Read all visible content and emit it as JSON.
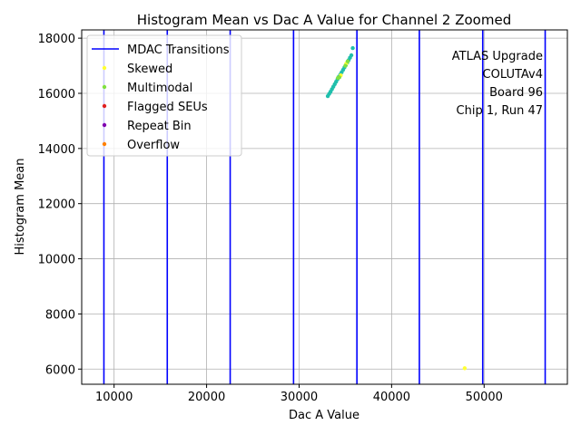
{
  "chart_data": {
    "type": "scatter",
    "title": "Histogram Mean vs Dac A Value for Channel 2 Zoomed",
    "xlabel": "Dac A Value",
    "ylabel": "Histogram Mean",
    "xlim": [
      6500,
      59000
    ],
    "ylim": [
      5450,
      18300
    ],
    "xticks": [
      10000,
      20000,
      30000,
      40000,
      50000
    ],
    "yticks": [
      6000,
      8000,
      10000,
      12000,
      14000,
      16000,
      18000
    ],
    "grid": true,
    "legend_position": "top-left",
    "annotation": [
      "ATLAS Upgrade",
      "COLUTAv4",
      "Board 96",
      "Chip 1, Run 47"
    ],
    "vlines": {
      "name": "MDAC Transitions",
      "color": "#0000ff",
      "x": [
        8900,
        15750,
        22550,
        29400,
        36250,
        43000,
        49850,
        56600
      ]
    },
    "series": [
      {
        "name": "",
        "color": "#1fbfac",
        "points": [
          [
            33100,
            15900
          ],
          [
            33250,
            15980
          ],
          [
            33400,
            16060
          ],
          [
            33550,
            16150
          ],
          [
            33700,
            16240
          ],
          [
            33850,
            16330
          ],
          [
            34000,
            16420
          ],
          [
            34150,
            16510
          ],
          [
            34300,
            16600
          ],
          [
            34450,
            16680
          ],
          [
            34600,
            16760
          ],
          [
            34750,
            16850
          ],
          [
            34900,
            16940
          ],
          [
            35050,
            17020
          ],
          [
            35200,
            17110
          ],
          [
            35350,
            17200
          ],
          [
            35500,
            17290
          ],
          [
            35650,
            17380
          ],
          [
            35800,
            17640
          ]
        ]
      },
      {
        "name": "Skewed",
        "color": "#ffff33",
        "points": [
          [
            47900,
            6030
          ],
          [
            34500,
            16650
          ],
          [
            35100,
            17080
          ]
        ]
      },
      {
        "name": "Multimodal",
        "color": "#80e040",
        "points": [
          [
            34200,
            16560
          ],
          [
            34350,
            16580
          ],
          [
            35000,
            17000
          ],
          [
            35250,
            17160
          ]
        ]
      },
      {
        "name": "Flagged SEUs",
        "color": "#e02020",
        "points": []
      },
      {
        "name": "Repeat Bin",
        "color": "#8000b0",
        "points": []
      },
      {
        "name": "Overflow",
        "color": "#ff8000",
        "points": []
      }
    ]
  }
}
